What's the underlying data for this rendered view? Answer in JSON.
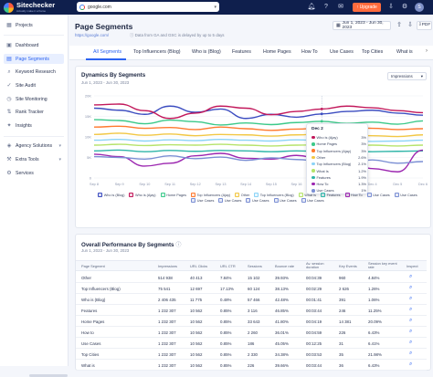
{
  "app": {
    "logo_name": "Sitechecker",
    "logo_tagline": "Actually make it a frame",
    "domain": "google.com",
    "upgrade_label": "Upgrade",
    "avatar_initial": "S"
  },
  "sidebar": {
    "items": [
      {
        "label": "Projects",
        "icon": "projects-icon",
        "glyph": "▦"
      },
      {
        "label": "Dashboard",
        "icon": "dashboard-icon",
        "glyph": "▣"
      },
      {
        "label": "Page Segments",
        "icon": "segments-icon",
        "glyph": "▤"
      },
      {
        "label": "Keyword Research",
        "icon": "keyword-icon",
        "glyph": "⌕"
      },
      {
        "label": "Site Audit",
        "icon": "audit-icon",
        "glyph": "✓"
      },
      {
        "label": "Site Monitoring",
        "icon": "monitoring-icon",
        "glyph": "◷"
      },
      {
        "label": "Rank Tracker",
        "icon": "rank-icon",
        "glyph": "⇅"
      },
      {
        "label": "Insights",
        "icon": "insights-icon",
        "glyph": "✦"
      },
      {
        "label": "Agency Solutions",
        "icon": "agency-icon",
        "glyph": "◈"
      },
      {
        "label": "Extra Tools",
        "icon": "tools-icon",
        "glyph": "⚒"
      },
      {
        "label": "Services",
        "icon": "services-icon",
        "glyph": "⚙"
      }
    ]
  },
  "header": {
    "title": "Page Segments",
    "url": "https://google.com/",
    "note": "Data from GA and GSC is delayed by up to 5 days",
    "date_range": "Jun 1, 2023 - Jun 30, 2023",
    "pdf_label": "PDF"
  },
  "tabs": [
    "All Segments",
    "Top Influencers (Blog)",
    "Who is (Blog)",
    "Features",
    "Home Pages",
    "How To",
    "Use Cases",
    "Top Cities",
    "What is"
  ],
  "dynamics": {
    "title": "Dynamics By Segments",
    "subtitle": "Jun 1, 2023 - Jun 30, 2023",
    "metric": "Impressions"
  },
  "chart_data": {
    "type": "line",
    "title": "Dynamics By Segments",
    "x": [
      "Sep 8",
      "Sep 9",
      "Sep 10",
      "Sep 11",
      "Sep 12",
      "Sep 13",
      "Sep 14",
      "Sep 15",
      "Sep 16",
      "Dec 2",
      "Dec 3",
      "Dec 4",
      "Dec 5",
      "Dec 6"
    ],
    "ylim": [
      0,
      20000
    ],
    "y_ticks": [
      "0",
      "5K",
      "10K",
      "15K",
      "20K"
    ],
    "grid": true,
    "legend_position": "bottom",
    "series": [
      {
        "name": "Who is (Blog)",
        "color": "#3b4cc0",
        "values": [
          17000,
          16500,
          15500,
          17500,
          16000,
          16800,
          14500,
          15500,
          14800,
          15600,
          16200,
          16500,
          15800,
          15300
        ]
      },
      {
        "name": "Who is (Ajay)",
        "color": "#c2185b",
        "values": [
          17800,
          18000,
          16400,
          14500,
          15800,
          17500,
          17000,
          15400,
          16200,
          16800,
          17500,
          17100,
          16400,
          15900
        ]
      },
      {
        "name": "Home Pages",
        "color": "#3cc98a",
        "values": [
          14200,
          14000,
          13200,
          14100,
          13700,
          12900,
          13400,
          13000,
          13500,
          13800,
          13300,
          13600,
          13100,
          13900
        ]
      },
      {
        "name": "Top Influencers (Ajay)",
        "color": "#ff7a2f",
        "values": [
          12400,
          12600,
          12100,
          12300,
          11800,
          12400,
          12000,
          11600,
          11900,
          12200,
          12400,
          12100,
          11800,
          12000
        ]
      },
      {
        "name": "Other",
        "color": "#f2c744",
        "values": [
          10600,
          10900,
          10400,
          10700,
          10300,
          10600,
          10500,
          10200,
          10500,
          10700,
          10400,
          10300,
          10100,
          10500
        ]
      },
      {
        "name": "Top Influencers (Blog)",
        "color": "#8bd3f7",
        "values": [
          9200,
          9400,
          9000,
          9300,
          9100,
          9400,
          9200,
          9000,
          9300,
          9100,
          9000,
          8900,
          9000,
          9200
        ]
      },
      {
        "name": "What Is",
        "color": "#b6e36b",
        "values": [
          8000,
          8200,
          7900,
          8100,
          8000,
          8200,
          8000,
          7800,
          8000,
          8100,
          7900,
          8000,
          7800,
          8000
        ]
      },
      {
        "name": "Features",
        "color": "#2fb5a8",
        "values": [
          6600,
          6800,
          6400,
          6700,
          6500,
          6700,
          6600,
          6400,
          6600,
          6500,
          6600,
          6400,
          6500,
          6600
        ]
      },
      {
        "name": "How To",
        "color": "#9c27b0",
        "values": [
          5800,
          5200,
          2900,
          3600,
          5400,
          6000,
          4800,
          4600,
          5500,
          4700,
          5000,
          2300,
          1500,
          6800
        ]
      },
      {
        "name": "Use Cases",
        "color": "#7b8fd4",
        "values": [
          5200,
          5000,
          4600,
          5400,
          4700,
          5100,
          4300,
          4900,
          4500,
          4100,
          3800,
          4400,
          3600,
          4000
        ]
      }
    ],
    "legend_extra": [
      "Use Cases",
      "Use Cases",
      "Use Cases",
      "Use Cases",
      "Use Cases",
      "Use Cases"
    ]
  },
  "tooltip": {
    "title": "Dec 2",
    "rows": [
      {
        "label": "Who is (Ajay)",
        "value": "3%",
        "color": "#c2185b"
      },
      {
        "label": "Home Pages",
        "value": "3%",
        "color": "#3cc98a"
      },
      {
        "label": "Top Influencers (Ajay)",
        "value": "3%",
        "color": "#ff7a2f"
      },
      {
        "label": "Other",
        "value": "2.6%",
        "color": "#f2c744"
      },
      {
        "label": "Top Influencers (Blog)",
        "value": "2.1%",
        "color": "#8bd3f7"
      },
      {
        "label": "What Is",
        "value": "1.2%",
        "color": "#b6e36b"
      },
      {
        "label": "Features",
        "value": "1.9%",
        "color": "#2fb5a8"
      },
      {
        "label": "How To",
        "value": "1.3%",
        "color": "#9c27b0"
      },
      {
        "label": "Use Cases",
        "value": "1%",
        "color": "#7b8fd4"
      }
    ]
  },
  "performance": {
    "title": "Overall Performance By Segments",
    "subtitle": "Jun 1, 2023 - Jun 30, 2023",
    "headers": [
      "Page Segment",
      "Impressions",
      "URL Clicks",
      "URL CTR",
      "Sessions",
      "Bounce rate",
      "Av. session duration",
      "Key Events",
      "Session key event rate",
      "Inspect"
    ],
    "rows": [
      [
        "Other",
        "514 938",
        "40 413",
        "7.84%",
        "15 102",
        "39.93%",
        "00:04:39",
        "960",
        "4.84%"
      ],
      [
        "Top Influencers (Blog)",
        "75 541",
        "12 697",
        "17.13%",
        "60 124",
        "38.13%",
        "00:02:29",
        "2 626",
        "1.26%"
      ],
      [
        "Who is (Blog)",
        "2 406 435",
        "11 775",
        "0.48%",
        "57 466",
        "42.48%",
        "00:01:41",
        "391",
        "1.06%"
      ],
      [
        "Features",
        "1 232 307",
        "10 562",
        "0.85%",
        "3 116",
        "46.85%",
        "00:03:44",
        "246",
        "11.25%"
      ],
      [
        "Home Pages",
        "1 232 307",
        "10 562",
        "0.85%",
        "33 643",
        "41.80%",
        "00:04:19",
        "14 381",
        "20.09%"
      ],
      [
        "How to",
        "1 232 307",
        "10 562",
        "0.85%",
        "2 260",
        "36.01%",
        "00:04:59",
        "226",
        "6.43%"
      ],
      [
        "Use Cases",
        "1 232 307",
        "10 562",
        "0.85%",
        "186",
        "45.05%",
        "00:12:25",
        "31",
        "6.41%"
      ],
      [
        "Top Cities",
        "1 232 307",
        "10 562",
        "0.85%",
        "2 330",
        "34.38%",
        "00:03:53",
        "35",
        "21.98%"
      ],
      [
        "What is",
        "1 232 307",
        "10 562",
        "0.85%",
        "226",
        "39.66%",
        "00:03:44",
        "36",
        "6.43%"
      ]
    ]
  }
}
